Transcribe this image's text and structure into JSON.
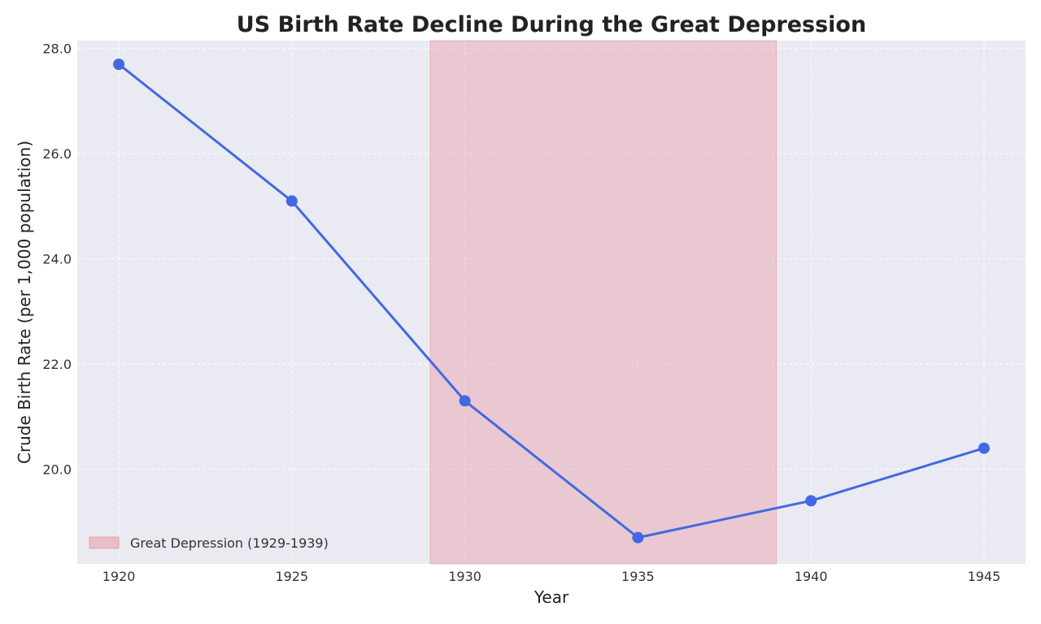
{
  "chart_data": {
    "type": "line",
    "title": "US Birth Rate Decline During the Great Depression",
    "xlabel": "Year",
    "ylabel": "Crude Birth Rate (per 1,000 population)",
    "x": [
      1920,
      1925,
      1930,
      1935,
      1940,
      1945
    ],
    "series": [
      {
        "values": [
          27.7,
          25.1,
          21.3,
          18.7,
          19.4,
          20.4
        ],
        "color": "#4169e1"
      }
    ],
    "xlim": [
      1918.8,
      1946.2
    ],
    "ylim": [
      18.2,
      28.15
    ],
    "xticks": [
      1920,
      1925,
      1930,
      1935,
      1940,
      1945
    ],
    "yticks": [
      20,
      22,
      24,
      26,
      28
    ],
    "ytick_labels": [
      "20.0",
      "22.0",
      "24.0",
      "26.0",
      "28.0"
    ],
    "shaded_region": {
      "label": "Great Depression (1929-1939)",
      "x_start": 1929,
      "x_end": 1939,
      "color": "#e8a0a8"
    },
    "grid": true,
    "legend_position": "lower-left",
    "background": "#eaeaf2"
  }
}
